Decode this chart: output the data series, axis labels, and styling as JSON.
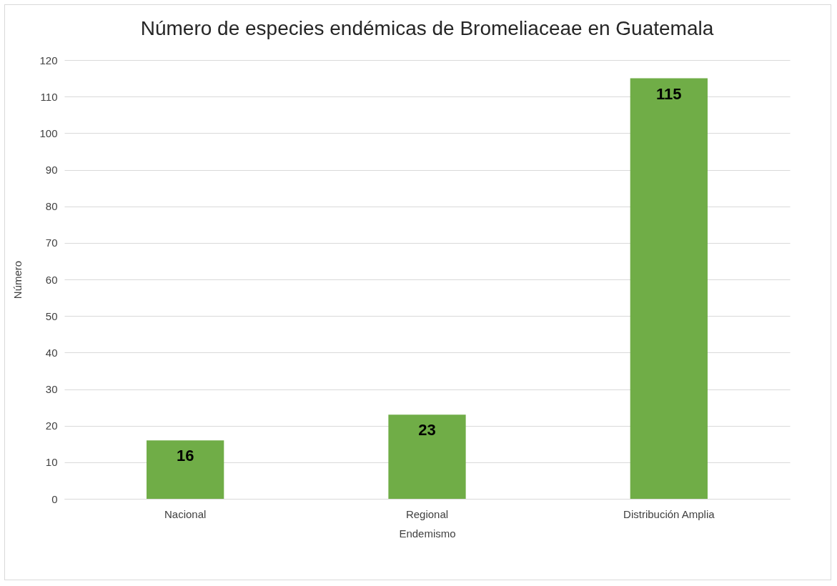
{
  "chart_data": {
    "type": "bar",
    "title": "Número de especies endémicas de Bromeliaceae en Guatemala",
    "xlabel": "Endemismo",
    "ylabel": "Número",
    "categories": [
      "Nacional",
      "Regional",
      "Distribución Amplia"
    ],
    "values": [
      16,
      23,
      115
    ],
    "color": "#70ad47",
    "ylim": [
      0,
      120
    ],
    "yticks": [
      0,
      10,
      20,
      30,
      40,
      50,
      60,
      70,
      80,
      90,
      100,
      110,
      120
    ],
    "grid": "y",
    "data_labels": true
  }
}
